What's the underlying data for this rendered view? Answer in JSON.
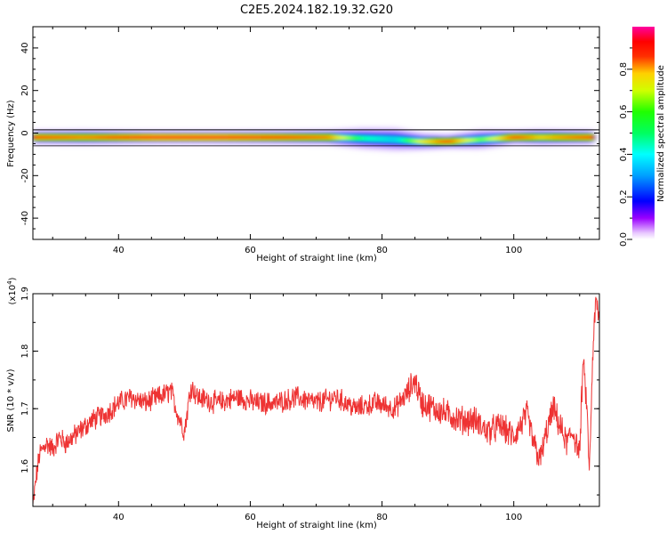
{
  "title": "C2E5.2024.182.19.32.G20",
  "chart_data": [
    {
      "type": "heatmap",
      "ylabel": "Frequency (Hz)",
      "xlabel": "Height of straight line (km)",
      "xlim": [
        27,
        113
      ],
      "ylim": [
        -50,
        50
      ],
      "xticks": [
        "40",
        "60",
        "80",
        "100"
      ],
      "yticks": [
        "40",
        "20",
        "0",
        "-20",
        "-40"
      ],
      "xtick_values": [
        40,
        60,
        80,
        100
      ],
      "ytick_values": [
        40,
        20,
        0,
        -20,
        -40
      ],
      "colorbar": {
        "label": "Normalized spectral amplitude",
        "range": [
          0,
          1
        ],
        "ticks": [
          "0.0",
          "0.2",
          "0.4",
          "0.6",
          "0.8"
        ],
        "tick_values": [
          0.0,
          0.2,
          0.4,
          0.6,
          0.8
        ]
      },
      "ridge": [
        {
          "x": 27,
          "y": -2,
          "amp": 0.9
        },
        {
          "x": 35,
          "y": -2,
          "amp": 0.85
        },
        {
          "x": 45,
          "y": -2,
          "amp": 0.95
        },
        {
          "x": 55,
          "y": -2,
          "amp": 0.95
        },
        {
          "x": 65,
          "y": -2,
          "amp": 0.9
        },
        {
          "x": 72,
          "y": -2,
          "amp": 0.85
        },
        {
          "x": 77,
          "y": -2.5,
          "amp": 0.5
        },
        {
          "x": 82,
          "y": -3,
          "amp": 0.4
        },
        {
          "x": 86,
          "y": -4,
          "amp": 0.75
        },
        {
          "x": 90,
          "y": -4,
          "amp": 0.9
        },
        {
          "x": 95,
          "y": -3,
          "amp": 0.6
        },
        {
          "x": 100,
          "y": -2,
          "amp": 0.9
        },
        {
          "x": 104,
          "y": -2,
          "amp": 0.8
        },
        {
          "x": 108,
          "y": -2,
          "amp": 0.85
        },
        {
          "x": 112,
          "y": -2,
          "amp": 0.9
        }
      ]
    },
    {
      "type": "line",
      "ylabel": "SNR (10 * v/v)",
      "yscale_label": "(x10",
      "yscale_exp": "4",
      "xlabel": "Height of straight line (km)",
      "xlim": [
        27,
        113
      ],
      "ylim": [
        1.53,
        1.9
      ],
      "xticks": [
        "40",
        "60",
        "80",
        "100"
      ],
      "yticks": [
        "1.9",
        "1.8",
        "1.7",
        "1.6"
      ],
      "xtick_values": [
        40,
        60,
        80,
        100
      ],
      "ytick_values": [
        1.9,
        1.8,
        1.7,
        1.6
      ],
      "color": "#ee3333",
      "series": [
        {
          "x": [
            27,
            27.5,
            28,
            29,
            30,
            31,
            32,
            34,
            36,
            38,
            40,
            42,
            44,
            46,
            48,
            49,
            50,
            51,
            52,
            55,
            58,
            61,
            64,
            67,
            70,
            73,
            76,
            79,
            82,
            84,
            85,
            86,
            88,
            90,
            92,
            94,
            96,
            98,
            100,
            102,
            103,
            104,
            105,
            106,
            107,
            108,
            109,
            110,
            110.5,
            111,
            111.5,
            112,
            112.5,
            113
          ],
          "y": [
            1.53,
            1.58,
            1.62,
            1.64,
            1.63,
            1.65,
            1.64,
            1.66,
            1.68,
            1.69,
            1.71,
            1.72,
            1.71,
            1.72,
            1.73,
            1.69,
            1.66,
            1.74,
            1.72,
            1.71,
            1.72,
            1.71,
            1.71,
            1.72,
            1.71,
            1.72,
            1.7,
            1.71,
            1.7,
            1.73,
            1.75,
            1.71,
            1.7,
            1.69,
            1.68,
            1.68,
            1.66,
            1.67,
            1.65,
            1.69,
            1.64,
            1.61,
            1.66,
            1.7,
            1.67,
            1.64,
            1.66,
            1.62,
            1.78,
            1.72,
            1.59,
            1.8,
            1.89,
            1.85
          ]
        }
      ]
    }
  ]
}
